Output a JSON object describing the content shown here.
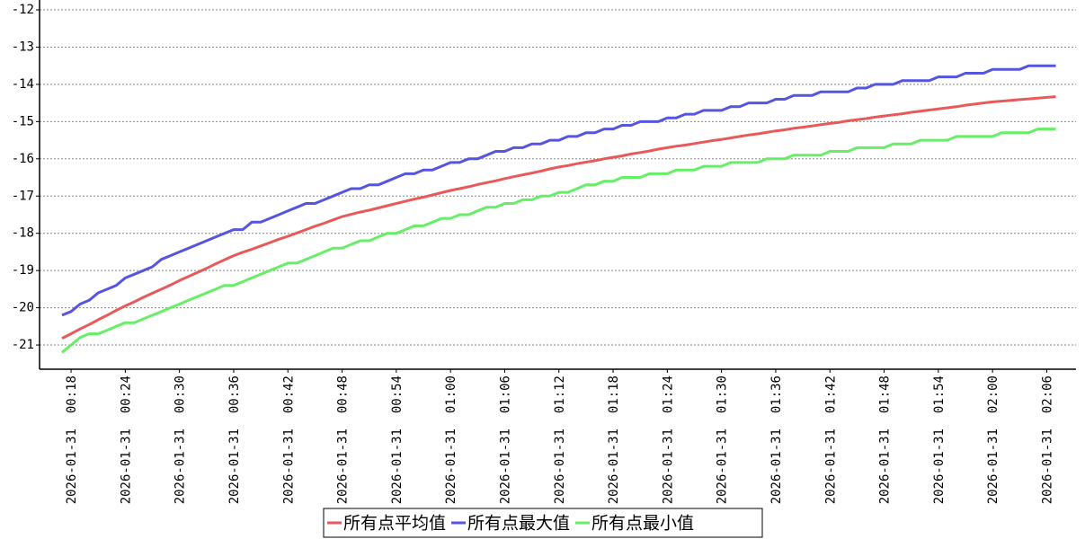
{
  "chart_data": {
    "type": "line",
    "categories": [
      null,
      "2026-01-31  00:18",
      null,
      null,
      null,
      null,
      null,
      "2026-01-31  00:24",
      null,
      null,
      null,
      null,
      null,
      "2026-01-31  00:30",
      null,
      null,
      null,
      null,
      null,
      "2026-01-31  00:36",
      null,
      null,
      null,
      null,
      null,
      "2026-01-31  00:42",
      null,
      null,
      null,
      null,
      null,
      "2026-01-31  00:48",
      null,
      null,
      null,
      null,
      null,
      "2026-01-31  00:54",
      null,
      null,
      null,
      null,
      null,
      "2026-01-31  01:00",
      null,
      null,
      null,
      null,
      null,
      "2026-01-31  01:06",
      null,
      null,
      null,
      null,
      null,
      "2026-01-31  01:12",
      null,
      null,
      null,
      null,
      null,
      "2026-01-31  01:18",
      null,
      null,
      null,
      null,
      null,
      "2026-01-31  01:24",
      null,
      null,
      null,
      null,
      null,
      "2026-01-31  01:30",
      null,
      null,
      null,
      null,
      null,
      "2026-01-31  01:36",
      null,
      null,
      null,
      null,
      null,
      "2026-01-31  01:42",
      null,
      null,
      null,
      null,
      null,
      "2026-01-31  01:48",
      null,
      null,
      null,
      null,
      null,
      "2026-01-31  01:54",
      null,
      null,
      null,
      null,
      null,
      "2026-01-31  02:00",
      null,
      null,
      null,
      null,
      null,
      "2026-01-31  02:06",
      null
    ],
    "series": [
      {
        "name": "所有点平均值",
        "color": "#e85a5a",
        "values": [
          -20.82,
          -20.7,
          -20.57,
          -20.45,
          -20.32,
          -20.2,
          -20.07,
          -19.95,
          -19.84,
          -19.72,
          -19.61,
          -19.5,
          -19.39,
          -19.27,
          -19.16,
          -19.05,
          -18.94,
          -18.82,
          -18.71,
          -18.6,
          -18.51,
          -18.43,
          -18.34,
          -18.25,
          -18.16,
          -18.08,
          -17.99,
          -17.9,
          -17.81,
          -17.73,
          -17.64,
          -17.55,
          -17.49,
          -17.43,
          -17.38,
          -17.32,
          -17.26,
          -17.2,
          -17.14,
          -17.08,
          -17.03,
          -16.97,
          -16.91,
          -16.85,
          -16.8,
          -16.75,
          -16.69,
          -16.64,
          -16.59,
          -16.53,
          -16.48,
          -16.43,
          -16.38,
          -16.33,
          -16.27,
          -16.22,
          -16.18,
          -16.13,
          -16.09,
          -16.05,
          -16.0,
          -15.96,
          -15.92,
          -15.87,
          -15.83,
          -15.79,
          -15.74,
          -15.7,
          -15.66,
          -15.63,
          -15.59,
          -15.55,
          -15.51,
          -15.48,
          -15.44,
          -15.4,
          -15.36,
          -15.33,
          -15.29,
          -15.25,
          -15.22,
          -15.18,
          -15.15,
          -15.12,
          -15.08,
          -15.05,
          -15.02,
          -14.98,
          -14.95,
          -14.92,
          -14.88,
          -14.85,
          -14.82,
          -14.79,
          -14.75,
          -14.72,
          -14.69,
          -14.66,
          -14.63,
          -14.6,
          -14.56,
          -14.53,
          -14.5,
          -14.47,
          -14.45,
          -14.43,
          -14.41,
          -14.39,
          -14.37,
          -14.35,
          -14.33
        ]
      },
      {
        "name": "所有点最大值",
        "color": "#5555e0",
        "values": [
          -20.2,
          -20.1,
          -19.9,
          -19.8,
          -19.6,
          -19.5,
          -19.4,
          -19.2,
          -19.1,
          -19.0,
          -18.9,
          -18.7,
          -18.6,
          -18.5,
          -18.4,
          -18.3,
          -18.2,
          -18.1,
          -18.0,
          -17.9,
          -17.9,
          -17.7,
          -17.7,
          -17.6,
          -17.5,
          -17.4,
          -17.3,
          -17.2,
          -17.2,
          -17.1,
          -17.0,
          -16.9,
          -16.8,
          -16.8,
          -16.7,
          -16.7,
          -16.6,
          -16.5,
          -16.4,
          -16.4,
          -16.3,
          -16.3,
          -16.2,
          -16.1,
          -16.1,
          -16.0,
          -16.0,
          -15.9,
          -15.8,
          -15.8,
          -15.7,
          -15.7,
          -15.6,
          -15.6,
          -15.5,
          -15.5,
          -15.4,
          -15.4,
          -15.3,
          -15.3,
          -15.2,
          -15.2,
          -15.1,
          -15.1,
          -15.0,
          -15.0,
          -15.0,
          -14.9,
          -14.9,
          -14.8,
          -14.8,
          -14.7,
          -14.7,
          -14.7,
          -14.6,
          -14.6,
          -14.5,
          -14.5,
          -14.5,
          -14.4,
          -14.4,
          -14.3,
          -14.3,
          -14.3,
          -14.2,
          -14.2,
          -14.2,
          -14.2,
          -14.1,
          -14.1,
          -14.0,
          -14.0,
          -14.0,
          -13.9,
          -13.9,
          -13.9,
          -13.9,
          -13.8,
          -13.8,
          -13.8,
          -13.7,
          -13.7,
          -13.7,
          -13.6,
          -13.6,
          -13.6,
          -13.6,
          -13.5,
          -13.5,
          -13.5,
          -13.5
        ]
      },
      {
        "name": "所有点最小值",
        "color": "#66ee66",
        "values": [
          -21.2,
          -21.0,
          -20.8,
          -20.7,
          -20.7,
          -20.6,
          -20.5,
          -20.4,
          -20.4,
          -20.3,
          -20.2,
          -20.1,
          -20.0,
          -19.9,
          -19.8,
          -19.7,
          -19.6,
          -19.5,
          -19.4,
          -19.4,
          -19.3,
          -19.2,
          -19.1,
          -19.0,
          -18.9,
          -18.8,
          -18.8,
          -18.7,
          -18.6,
          -18.5,
          -18.4,
          -18.4,
          -18.3,
          -18.2,
          -18.2,
          -18.1,
          -18.0,
          -18.0,
          -17.9,
          -17.8,
          -17.8,
          -17.7,
          -17.6,
          -17.6,
          -17.5,
          -17.5,
          -17.4,
          -17.3,
          -17.3,
          -17.2,
          -17.2,
          -17.1,
          -17.1,
          -17.0,
          -17.0,
          -16.9,
          -16.9,
          -16.8,
          -16.7,
          -16.7,
          -16.6,
          -16.6,
          -16.5,
          -16.5,
          -16.5,
          -16.4,
          -16.4,
          -16.4,
          -16.3,
          -16.3,
          -16.3,
          -16.2,
          -16.2,
          -16.2,
          -16.1,
          -16.1,
          -16.1,
          -16.1,
          -16.0,
          -16.0,
          -16.0,
          -15.9,
          -15.9,
          -15.9,
          -15.9,
          -15.8,
          -15.8,
          -15.8,
          -15.7,
          -15.7,
          -15.7,
          -15.7,
          -15.6,
          -15.6,
          -15.6,
          -15.5,
          -15.5,
          -15.5,
          -15.5,
          -15.4,
          -15.4,
          -15.4,
          -15.4,
          -15.4,
          -15.3,
          -15.3,
          -15.3,
          -15.3,
          -15.2,
          -15.2,
          -15.2
        ]
      }
    ],
    "ylim": [
      -21.65,
      -12
    ],
    "yticks": [
      -21,
      -20,
      -19,
      -18,
      -17,
      -16,
      -15,
      -14,
      -13,
      -12
    ],
    "grid": true,
    "legend": "bottom"
  }
}
